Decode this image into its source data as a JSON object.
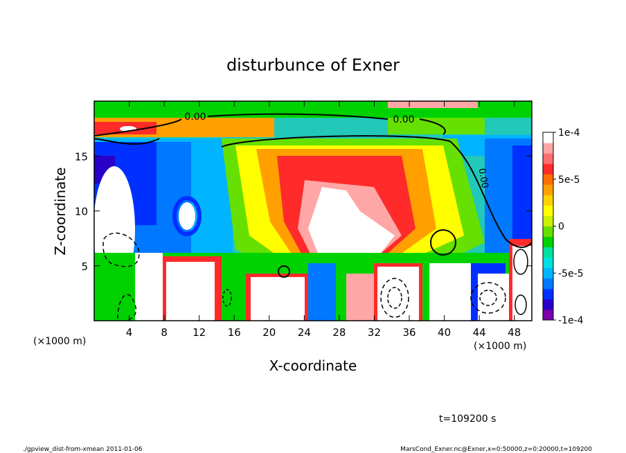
{
  "chart_data": {
    "type": "heatmap",
    "title": "disturbunce of Exner",
    "xlabel": "X-coordinate",
    "ylabel": "Z-coordinate",
    "x_unit": "(×1000 m)",
    "y_unit": "(×1000 m)",
    "xlim": [
      0,
      50
    ],
    "ylim": [
      0,
      20
    ],
    "x_ticks": [
      4,
      8,
      12,
      16,
      20,
      24,
      28,
      32,
      36,
      40,
      44,
      48
    ],
    "y_ticks": [
      5,
      10,
      15
    ],
    "colorbar": {
      "range": [
        -0.0001,
        0.0001
      ],
      "tick_labels": [
        "1e-4",
        "5e-5",
        "0",
        "-5e-5",
        "-1e-4"
      ],
      "tick_values": [
        0.0001,
        5e-05,
        0,
        -5e-05,
        -0.0001
      ],
      "colors": [
        "#7a00aa",
        "#2800c8",
        "#0030ff",
        "#0078ff",
        "#00b4ff",
        "#00e0e0",
        "#00e0a0",
        "#00d200",
        "#66e000",
        "#c8f000",
        "#ffff00",
        "#ffd200",
        "#ffa000",
        "#ff7000",
        "#ff2a2a",
        "#ff6e6e",
        "#ffa6a6",
        "#ffffff"
      ]
    },
    "contour_labels": [
      "0.00",
      "0.00",
      "0.00"
    ],
    "time_label": "t=109200 s",
    "footer_left": "./gpview_dist-from-xmean  2011-01-06",
    "footer_right": "MarsCond_Exner.nc@Exner,x=0:50000,z=0:20000,t=109200"
  }
}
